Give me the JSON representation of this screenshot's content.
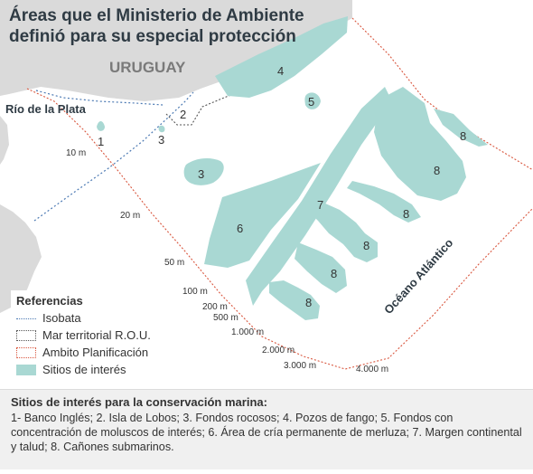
{
  "title": {
    "line1": "Áreas que el Ministerio de Ambiente",
    "line2": "definió para su especial protección"
  },
  "places": {
    "country": "URUGUAY",
    "river": "Río de la Plata",
    "ocean": "Océano Atlántico"
  },
  "isobaths": [
    {
      "label": "10 m"
    },
    {
      "label": "20 m"
    },
    {
      "label": "50 m"
    },
    {
      "label": "100 m"
    },
    {
      "label": "200 m"
    },
    {
      "label": "500 m"
    },
    {
      "label": "1.000 m"
    },
    {
      "label": "2.000 m"
    },
    {
      "label": "3.000 m"
    },
    {
      "label": "4.000 m"
    }
  ],
  "site_numbers": {
    "banco_ingles": "1",
    "isla_de_lobos": "2",
    "fondos_rocosos_1": "3",
    "fondos_rocosos_2": "3",
    "pozos_de_fango": "4",
    "moluscos": "5",
    "merluza": "6",
    "margen": "7",
    "canon_a": "8",
    "canon_b": "8",
    "canon_c": "8",
    "canon_d": "8",
    "canon_e": "8",
    "canon_f": "8"
  },
  "legend": {
    "title": "Referencias",
    "items": [
      {
        "label": "Isobata"
      },
      {
        "label": "Mar territorial R.O.U."
      },
      {
        "label": "Ambito Planificación"
      },
      {
        "label": "Sitios de interés"
      }
    ]
  },
  "footer": {
    "title": "Sitios de interés para la conservación marina:",
    "body": "1- Banco Inglés; 2. Isla de Lobos; 3. Fondos rocosos; 4. Pozos de fango; 5. Fondos con concentración de moluscos de interés; 6. Área de cría permanente de merluza; 7. Margen continental y talud; 8. Cañones submarinos."
  },
  "colors": {
    "land": "#dadada",
    "sites": "#a9d8d3",
    "isobath": "#4b79b3",
    "territorial_sea": "#555555",
    "planning_area": "#d9573f",
    "text": "#333333"
  }
}
